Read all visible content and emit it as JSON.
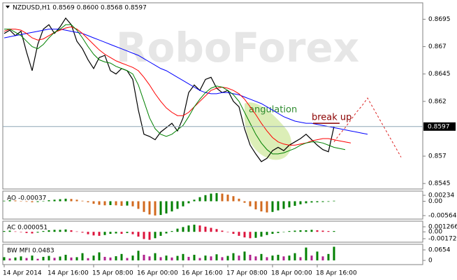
{
  "chart_data": [
    {
      "type": "line",
      "title": "NZDUSD,H1  0.8569 0.8600 0.8568 0.8597",
      "watermark": "RoboForex",
      "categories": [
        "14 Apr 2014",
        null,
        null,
        null,
        null,
        null,
        null,
        null,
        "14 Apr 16:00",
        null,
        null,
        null,
        null,
        null,
        null,
        null,
        "15 Apr 08:00",
        null,
        null,
        null,
        null,
        null,
        null,
        null,
        "16 Apr 00:00",
        null,
        null,
        null,
        null,
        null,
        null,
        null,
        "16 Apr 16:00",
        null,
        null,
        null,
        null,
        null,
        null,
        null,
        "17 Apr 08:00",
        null,
        null,
        null,
        null,
        null,
        null,
        null,
        "18 Apr 00:00",
        null,
        null,
        null,
        null,
        null,
        null,
        null,
        "18 Apr 16:00",
        null,
        null,
        null,
        null,
        null,
        null,
        null,
        null,
        null,
        null,
        null,
        null,
        null,
        null,
        null
      ],
      "ylim": [
        0.854,
        0.871
      ],
      "yticks": [
        0.8695,
        0.867,
        0.8645,
        0.862,
        0.857,
        0.8545
      ],
      "last_price": 0.8597,
      "series": [
        {
          "color": "#000000",
          "width": 1.2,
          "values": [
            0.8682,
            0.8685,
            0.868,
            0.8684,
            0.8665,
            0.8648,
            0.8672,
            0.8686,
            0.869,
            0.8682,
            0.8688,
            0.8696,
            0.869,
            0.8675,
            0.8668,
            0.8658,
            0.865,
            0.866,
            0.8662,
            0.8648,
            0.8645,
            0.865,
            0.8648,
            0.864,
            0.8612,
            0.859,
            0.8588,
            0.8585,
            0.8592,
            0.8596,
            0.86,
            0.8593,
            0.8605,
            0.8628,
            0.8635,
            0.863,
            0.864,
            0.8642,
            0.8632,
            0.8628,
            0.863,
            0.862,
            0.8615,
            0.8595,
            0.858,
            0.8572,
            0.8565,
            0.8568,
            0.8575,
            0.8578,
            0.8575,
            0.858,
            0.8583,
            0.8586,
            0.859,
            0.8585,
            0.858,
            0.8576,
            0.8574,
            0.8597,
            null,
            null,
            null,
            null,
            null,
            null,
            null,
            null,
            null,
            null,
            null,
            null
          ]
        },
        {
          "color": "#0000ff",
          "width": 1,
          "values": [
            0.8678,
            0.8679,
            0.868,
            0.8681,
            0.8682,
            0.8683,
            0.8684,
            0.8685,
            0.8686,
            0.8686,
            0.8686,
            0.8685,
            0.8684,
            0.8683,
            0.8682,
            0.868,
            0.8678,
            0.8676,
            0.8674,
            0.8672,
            0.867,
            0.8668,
            0.8666,
            0.8664,
            0.8662,
            0.8659,
            0.8656,
            0.8653,
            0.865,
            0.8648,
            0.8645,
            0.8642,
            0.8639,
            0.8636,
            0.8633,
            0.863,
            0.8628,
            0.8627,
            0.8627,
            0.8628,
            0.8628,
            0.8627,
            0.8626,
            0.8624,
            0.8622,
            0.862,
            0.8618,
            0.8615,
            0.8612,
            0.8609,
            0.8606,
            0.8604,
            0.8602,
            0.8601,
            0.86,
            0.86,
            0.8599,
            0.8598,
            0.8597,
            0.8596,
            0.8595,
            0.8594,
            0.8593,
            0.8592,
            0.8591,
            0.859,
            null,
            null,
            null,
            null,
            null,
            null
          ]
        },
        {
          "color": "#ff0000",
          "width": 1,
          "values": [
            0.8684,
            0.8686,
            0.8686,
            0.8685,
            0.8682,
            0.8678,
            0.8676,
            0.8677,
            0.868,
            0.8683,
            0.8685,
            0.8687,
            0.8688,
            0.8686,
            0.8682,
            0.8677,
            0.8672,
            0.8667,
            0.8663,
            0.866,
            0.8657,
            0.8655,
            0.8653,
            0.8651,
            0.8648,
            0.8642,
            0.8635,
            0.8627,
            0.862,
            0.8614,
            0.861,
            0.8607,
            0.8607,
            0.861,
            0.8615,
            0.862,
            0.8625,
            0.863,
            0.8632,
            0.8633,
            0.8632,
            0.863,
            0.8627,
            0.8622,
            0.8615,
            0.8608,
            0.86,
            0.8593,
            0.8587,
            0.8583,
            0.8581,
            0.858,
            0.858,
            0.8581,
            0.8582,
            0.8584,
            0.8585,
            0.8586,
            0.8586,
            0.8585,
            0.8584,
            0.8583,
            0.8582,
            null,
            null,
            null,
            null,
            null,
            null,
            null,
            null,
            null
          ]
        },
        {
          "color": "#008000",
          "width": 1,
          "values": [
            0.8686,
            0.8686,
            0.8683,
            0.868,
            0.8675,
            0.867,
            0.8668,
            0.8672,
            0.8678,
            0.8683,
            0.8686,
            0.869,
            0.869,
            0.8685,
            0.8678,
            0.867,
            0.8663,
            0.8658,
            0.8656,
            0.8655,
            0.8652,
            0.865,
            0.8648,
            0.8645,
            0.8635,
            0.862,
            0.8605,
            0.8595,
            0.859,
            0.8588,
            0.859,
            0.8594,
            0.8598,
            0.8606,
            0.8615,
            0.8622,
            0.8628,
            0.8632,
            0.8634,
            0.8633,
            0.863,
            0.8626,
            0.862,
            0.861,
            0.86,
            0.859,
            0.8582,
            0.8576,
            0.8572,
            0.8572,
            0.8573,
            0.8575,
            0.8577,
            0.858,
            0.8582,
            0.8583,
            0.8583,
            0.8582,
            0.858,
            0.8578,
            0.8577,
            0.8576,
            null,
            null,
            null,
            null,
            null,
            null,
            null,
            null,
            null,
            null
          ]
        },
        {
          "color": "#dd2222",
          "width": 1,
          "dashed": true,
          "values": [
            null,
            null,
            null,
            null,
            null,
            null,
            null,
            null,
            null,
            null,
            null,
            null,
            null,
            null,
            null,
            null,
            null,
            null,
            null,
            null,
            null,
            null,
            null,
            null,
            null,
            null,
            null,
            null,
            null,
            null,
            null,
            null,
            null,
            null,
            null,
            null,
            null,
            null,
            null,
            null,
            null,
            null,
            null,
            null,
            null,
            null,
            null,
            null,
            null,
            null,
            null,
            null,
            null,
            null,
            null,
            null,
            null,
            null,
            null,
            0.8583,
            0.859,
            0.8596,
            0.8603,
            0.861,
            0.8616,
            0.8623,
            0.8614,
            0.8605,
            0.8596,
            0.8587,
            0.8578,
            0.8569
          ]
        }
      ],
      "annotations": [
        {
          "text": "angulation",
          "color": "#2e8b2e"
        },
        {
          "text": "break up",
          "color": "#8b0000",
          "value": 0.86
        }
      ]
    },
    {
      "type": "bar",
      "title": "AO -0.00037",
      "up_color": "#008000",
      "down_color": "#d2691e",
      "ylim": [
        -0.00702,
        0.00399
      ],
      "yticks": [
        0.00234,
        {
          "value": 0,
          "label": "0.00"
        },
        -0.00564
      ],
      "values": [
        0.0002,
        0.0004,
        0.0003,
        0.0001,
        -0.0002,
        -0.0004,
        -0.0003,
        0.0001,
        0.0004,
        0.0006,
        0.0008,
        0.001,
        0.0009,
        0.0006,
        0.0002,
        -0.0004,
        -0.001,
        -0.0014,
        -0.0016,
        -0.0015,
        -0.0016,
        -0.0018,
        -0.0017,
        -0.002,
        -0.003,
        -0.0042,
        -0.0052,
        -0.0056,
        -0.0054,
        -0.0048,
        -0.004,
        -0.003,
        -0.002,
        -0.0008,
        0.0006,
        0.0016,
        0.0024,
        0.003,
        0.0032,
        0.003,
        0.0026,
        0.002,
        0.001,
        -0.0006,
        -0.002,
        -0.0032,
        -0.004,
        -0.0044,
        -0.0042,
        -0.0036,
        -0.003,
        -0.0024,
        -0.0018,
        -0.0012,
        -0.0008,
        -0.0005,
        -0.0004,
        -0.0003,
        -0.0002,
        0.0002
      ]
    },
    {
      "type": "bar",
      "title": "AC 0.000051",
      "up_color": "#008000",
      "down_color": "#dc143c",
      "ylim": [
        -0.0026,
        0.00267
      ],
      "yticks": [
        0.001266,
        {
          "value": 0,
          "label": "0.00"
        },
        -0.00172
      ],
      "values": [
        0.0002,
        0.0003,
        0.0001,
        -0.0001,
        -0.0003,
        -0.0004,
        -0.0002,
        0.0002,
        0.0004,
        0.0005,
        0.0005,
        0.0006,
        0.0004,
        0.0001,
        -0.0002,
        -0.0006,
        -0.0009,
        -0.001,
        -0.0008,
        -0.0005,
        -0.0004,
        -0.0005,
        -0.0003,
        -0.0006,
        -0.0012,
        -0.0018,
        -0.002,
        -0.0016,
        -0.001,
        -0.0004,
        0.0002,
        0.0008,
        0.0012,
        0.0016,
        0.0018,
        0.0016,
        0.0013,
        0.001,
        0.0007,
        0.0003,
        -0.0001,
        -0.0005,
        -0.001,
        -0.0014,
        -0.0016,
        -0.0015,
        -0.0012,
        -0.0008,
        -0.0005,
        -0.0003,
        0.0,
        0.0002,
        0.0003,
        0.0004,
        0.0004,
        0.0005,
        0.0004,
        0.0003,
        0.0002,
        0.0002
      ]
    },
    {
      "type": "bar",
      "title": "BW MFI 0.0483",
      "up_color": "#008000",
      "down_color": "#b0208c",
      "ylim": [
        -0.0262,
        0.1003
      ],
      "yticks": [
        0.0654,
        0
      ],
      "values": [
        0.02,
        0.012,
        0.018,
        0.025,
        0.015,
        0.03,
        0.01,
        0.022,
        0.028,
        0.016,
        0.024,
        0.035,
        0.018,
        0.02,
        0.045,
        0.014,
        0.03,
        0.05,
        0.022,
        0.018,
        0.026,
        0.04,
        0.015,
        0.03,
        0.06,
        0.035,
        0.025,
        0.045,
        0.02,
        0.03,
        0.018,
        0.028,
        0.04,
        0.022,
        0.035,
        0.015,
        0.03,
        0.025,
        0.038,
        0.02,
        0.028,
        0.045,
        0.03,
        0.055,
        0.035,
        0.025,
        0.04,
        0.02,
        0.03,
        0.035,
        0.025,
        0.03,
        0.045,
        0.02,
        0.08,
        0.03,
        0.055,
        0.025,
        0.04,
        0.085
      ]
    }
  ]
}
